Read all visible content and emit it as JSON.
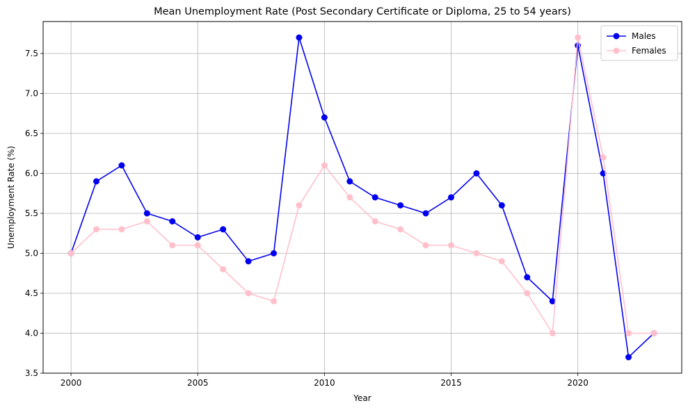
{
  "chart_data": {
    "type": "line",
    "title": "Mean Unemployment Rate (Post Secondary Certificate or Diploma, 25 to 54 years)",
    "xlabel": "Year",
    "ylabel": "Unemployment Rate (%)",
    "xlim": [
      1998.9,
      2024.1
    ],
    "ylim": [
      3.5,
      7.9
    ],
    "xticks": [
      2000,
      2005,
      2010,
      2015,
      2020
    ],
    "xtick_labels": [
      "2000",
      "2005",
      "2010",
      "2015",
      "2020"
    ],
    "yticks": [
      3.5,
      4.0,
      4.5,
      5.0,
      5.5,
      6.0,
      6.5,
      7.0,
      7.5
    ],
    "ytick_labels": [
      "3.5",
      "4.0",
      "4.5",
      "5.0",
      "5.5",
      "6.0",
      "6.5",
      "7.0",
      "7.5"
    ],
    "grid": true,
    "legend_position": "top-right",
    "x": [
      2000,
      2001,
      2002,
      2003,
      2004,
      2005,
      2006,
      2007,
      2008,
      2009,
      2010,
      2011,
      2012,
      2013,
      2014,
      2015,
      2016,
      2017,
      2018,
      2019,
      2020,
      2021,
      2022,
      2023
    ],
    "series": [
      {
        "name": "Males",
        "color": "#0000ee",
        "values": [
          5.0,
          5.9,
          6.1,
          5.5,
          5.4,
          5.2,
          5.3,
          4.9,
          5.0,
          7.7,
          6.7,
          5.9,
          5.7,
          5.6,
          5.5,
          5.7,
          6.0,
          5.6,
          4.7,
          4.4,
          7.6,
          6.0,
          3.7,
          4.0
        ]
      },
      {
        "name": "Females",
        "color": "#ffc0cb",
        "values": [
          5.0,
          5.3,
          5.3,
          5.4,
          5.1,
          5.1,
          4.8,
          4.5,
          4.4,
          5.6,
          6.1,
          5.7,
          5.4,
          5.3,
          5.1,
          5.1,
          5.0,
          4.9,
          4.5,
          4.0,
          7.7,
          6.2,
          4.0,
          4.0
        ]
      }
    ]
  }
}
